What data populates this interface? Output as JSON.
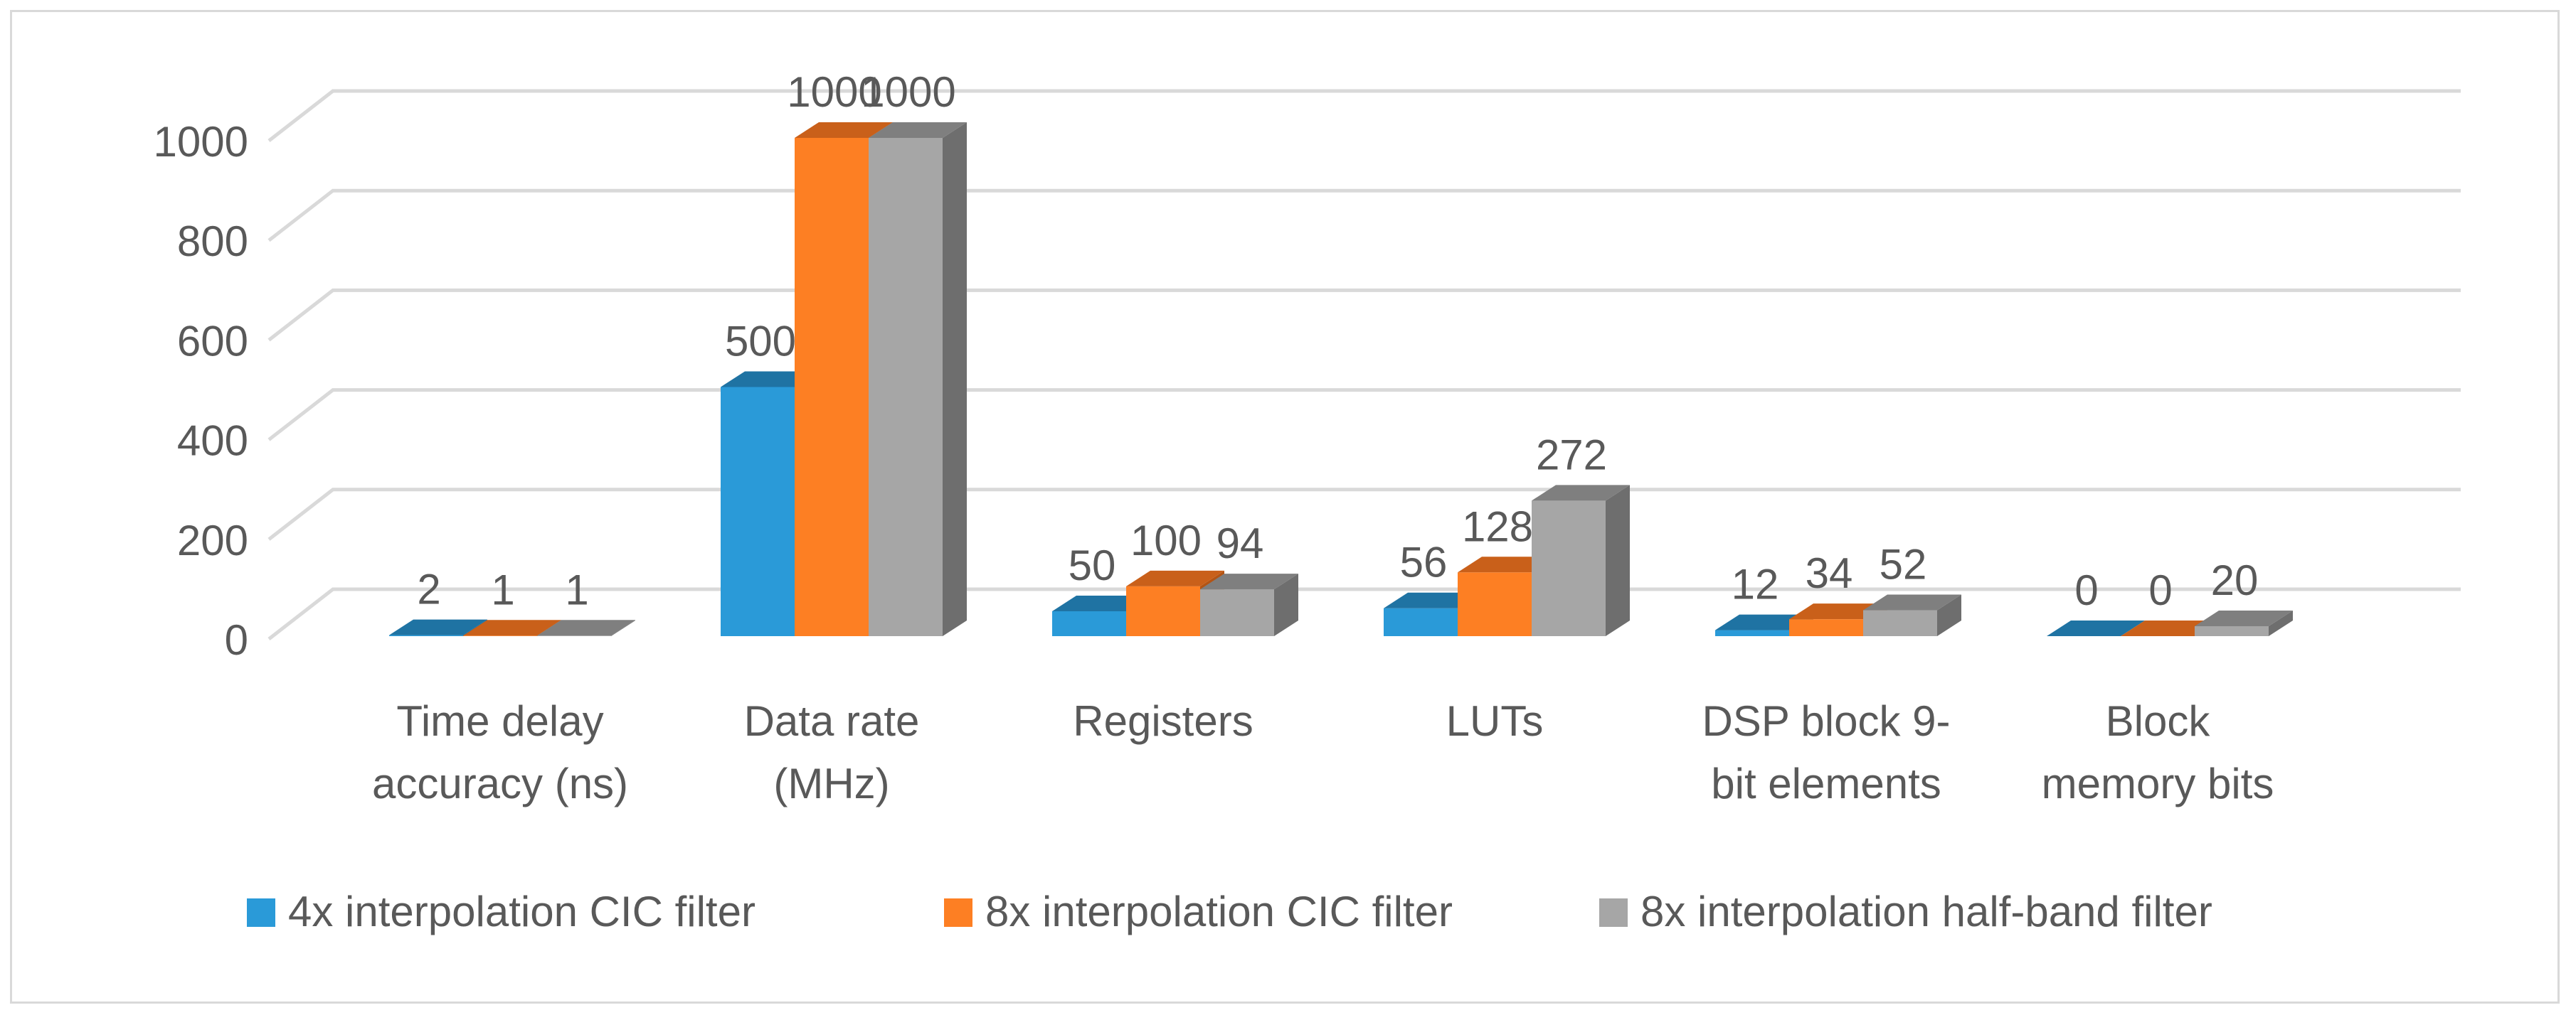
{
  "chart_data": {
    "type": "bar",
    "style": "3d-clustered-column",
    "title": "",
    "xlabel": "",
    "ylabel": "",
    "ylim": [
      0,
      1000
    ],
    "yticks": [
      0,
      200,
      400,
      600,
      800,
      1000
    ],
    "grid": true,
    "legend_position": "bottom",
    "categories": [
      [
        "Time delay",
        "accuracy (ns)"
      ],
      [
        "Data rate",
        "(MHz)"
      ],
      [
        "Registers"
      ],
      [
        "LUTs"
      ],
      [
        "DSP block 9-",
        "bit elements"
      ],
      [
        "Block",
        "memory bits"
      ]
    ],
    "series": [
      {
        "name": "4x interpolation CIC filter",
        "values": [
          2,
          500,
          50,
          56,
          12,
          0
        ],
        "color": "#2a9ad8",
        "top_color": "#1f73a3",
        "side_color": "#1b6491"
      },
      {
        "name": "8x interpolation CIC filter",
        "values": [
          1,
          1000,
          100,
          128,
          34,
          0
        ],
        "color": "#fd7f23",
        "top_color": "#c9601a",
        "side_color": "#b35414"
      },
      {
        "name": "8x interpolation half-band filter",
        "values": [
          1,
          1000,
          94,
          272,
          52,
          20
        ],
        "color": "#a6a6a6",
        "top_color": "#7f7f7f",
        "side_color": "#6e6e6e"
      }
    ]
  }
}
